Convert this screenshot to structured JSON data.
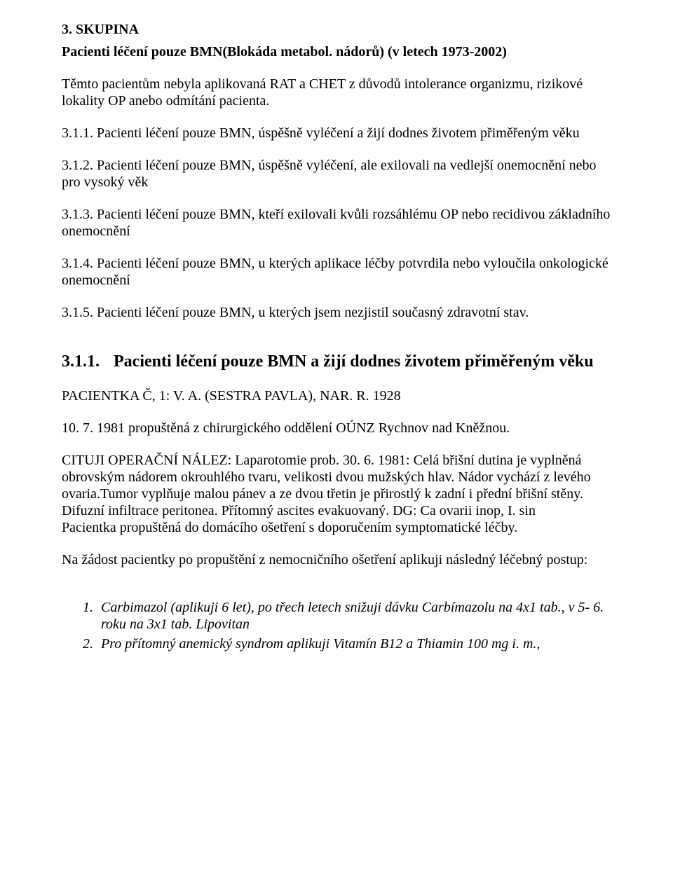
{
  "section": {
    "heading": "3. SKUPINA",
    "subheading": "Pacienti léčení pouze BMN(Blokáda metabol. nádorů) (v letech 1973-2002)",
    "intro": "Těmto pacientům nebyla aplikovaná RAT a CHET z důvodů intolerance organizmu, rizikové lokality OP anebo odmítání pacienta.",
    "items": [
      {
        "num": "3.1.1.",
        "text": "Pacienti léčení pouze BMN, úspěšně vyléčení a žijí dodnes životem přiměřeným věku"
      },
      {
        "num": "3.1.2.",
        "text": "Pacienti léčení pouze BMN, úspěšně vyléčení, ale exilovali na vedlejší onemocnění nebo pro vysoký věk"
      },
      {
        "num": "3.1.3.",
        "text": "Pacienti léčení pouze BMN, kteří exilovali kvůli rozsáhlému OP nebo recidivou základního onemocnění"
      },
      {
        "num": "3.1.4.",
        "text": "Pacienti léčení pouze BMN, u kterých aplikace léčby potvrdila nebo vyloučila onkologické onemocnění"
      },
      {
        "num": "3.1.5.",
        "text": "Pacienti léčení pouze BMN, u kterých jsem nezjistil současný zdravotní stav."
      }
    ]
  },
  "subsection": {
    "num": "3.1.1.",
    "title": "Pacienti léčení pouze BMN a žijí dodnes životem přiměřeným věku",
    "patient": "PACIENTKA Č, 1: V. A. (SESTRA PAVLA), NAR. R. 1928",
    "discharge": "10. 7. 1981 propuštěná z chirurgického oddělení OÚNZ Rychnov nad Kněžnou.",
    "cituji_label": "CITUJI OPERAČNÍ NÁLEZ:",
    "cituji_text_1": " Laparotomie prob. 30. 6. 1981: Celá břišní dutina je vyplněná obrovským nádorem okrouhlého tvaru, velikosti dvou mužských hlav. Nádor vychází z levého ovaria.Tumor vyplňuje malou pánev a ze dvou třetin je přirostlý k zadní i přední břišní stěny. Difuzní infiltrace peritonea. Přítomný ascites evakuovaný. ",
    "dg_label": "DG:",
    "dg_text": " Ca ovarii inop, I. sin",
    "discharge2": "Pacientka propuštěná do domácího ošetření s doporučením symptomatické léčby.",
    "request": "Na žádost pacientky po propuštění z nemocničního ošetření aplikuji následný léčebný postup:",
    "meds": [
      {
        "num": "1.",
        "text": "Carbimazol (aplikuji 6 let), po třech letech snižuji dávku Carbímazolu na 4x1 tab., v 5- 6. roku na 3x1 tab. Lipovitan"
      },
      {
        "num": "2.",
        "text": "Pro přítomný anemický syndrom aplikuji Vitamín B12 a Thiamin 100 mg i. m.,"
      }
    ]
  }
}
